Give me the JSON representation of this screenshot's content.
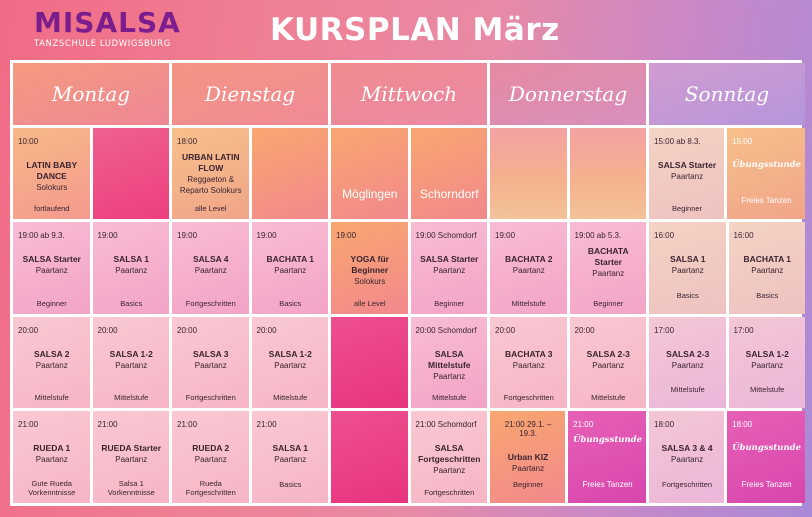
{
  "logo": {
    "name": "MISALSA",
    "subtitle": "TANZSCHULE LUDWIGSBURG"
  },
  "title": "KURSPLAN März",
  "days": [
    "Montag",
    "Dienstag",
    "Mittwoch",
    "Donnerstag",
    "Sonntag"
  ],
  "row1": {
    "mo": {
      "time": "10:00",
      "name": "LATIN BABY DANCE",
      "sub": "Solokurs",
      "level": "fortlaufend"
    },
    "di": {
      "time": "18:00",
      "name": "URBAN LATIN FLOW",
      "sub": "Reggaeton & Reparto Solokurs",
      "level": "alle Level"
    },
    "mi": {
      "loc1": "Möglingen",
      "loc2": "Schorndorf"
    },
    "so": {
      "a": {
        "time": "15:00 ab 8.3.",
        "name": "SALSA Starter",
        "sub": "Paartanz",
        "level": "Beginner"
      },
      "b": {
        "time": "15:00",
        "name": "Übungsstunde",
        "level": "Freies Tanzen"
      }
    }
  },
  "row2": {
    "mo": [
      {
        "time": "19:00 ab 9.3.",
        "name": "SALSA Starter",
        "sub": "Paartanz",
        "level": "Beginner"
      },
      {
        "time": "19:00",
        "name": "SALSA 1",
        "sub": "Paartanz",
        "level": "Basics"
      }
    ],
    "di": [
      {
        "time": "19:00",
        "name": "SALSA 4",
        "sub": "Paartanz",
        "level": "Fortgeschritten"
      },
      {
        "time": "19:00",
        "name": "BACHATA 1",
        "sub": "Paartanz",
        "level": "Basics"
      }
    ],
    "mi": [
      {
        "time": "19:00",
        "name": "YOGA für Beginner",
        "sub": "Solokurs",
        "level": "alle Level"
      },
      {
        "time": "19:00 Schomdorf",
        "name": "SALSA Starter",
        "sub": "Paartanz",
        "level": "Beginner"
      }
    ],
    "do": [
      {
        "time": "19:00",
        "name": "BACHATA 2",
        "sub": "Paartanz",
        "level": "Mittelstufe"
      },
      {
        "time": "19:00 ab 5.3.",
        "name": "BACHATA Starter",
        "sub": "Paartanz",
        "level": "Beginner"
      }
    ],
    "so": [
      {
        "time": "16:00",
        "name": "SALSA 1",
        "sub": "Paartanz",
        "level": "Basics"
      },
      {
        "time": "16:00",
        "name": "BACHATA 1",
        "sub": "Paartanz",
        "level": "Basics"
      }
    ]
  },
  "row3": {
    "mo": [
      {
        "time": "20:00",
        "name": "SALSA 2",
        "sub": "Paartanz",
        "level": "Mittelstufe"
      },
      {
        "time": "20:00",
        "name": "SALSA 1-2",
        "sub": "Paartanz",
        "level": "Mittelstufe"
      }
    ],
    "di": [
      {
        "time": "20:00",
        "name": "SALSA 3",
        "sub": "Paartanz",
        "level": "Fortgeschritten"
      },
      {
        "time": "20:00",
        "name": "SALSA 1-2",
        "sub": "Paartanz",
        "level": "Mittelstufe"
      }
    ],
    "mi": {
      "time": "20:00 Schomdorf",
      "name": "SALSA Mittelstufe",
      "sub": "Paartanz",
      "level": "Mittelstufe"
    },
    "do": [
      {
        "time": "20:00",
        "name": "BACHATA 3",
        "sub": "Paartanz",
        "level": "Fortgeschritten"
      },
      {
        "time": "20:00",
        "name": "SALSA 2-3",
        "sub": "Paartanz",
        "level": "Mittelstufe"
      }
    ],
    "so": [
      {
        "time": "17:00",
        "name": "SALSA 2-3",
        "sub": "Paartanz",
        "level": "Mittelstufe"
      },
      {
        "time": "17:00",
        "name": "SALSA 1-2",
        "sub": "Paartanz",
        "level": "Mittelstufe"
      }
    ]
  },
  "row4": {
    "mo": [
      {
        "time": "21:00",
        "name": "RUEDA 1",
        "sub": "Paartanz",
        "level": "Gute Rueda Vorkenntnisse"
      },
      {
        "time": "21:00",
        "name": "RUEDA Starter",
        "sub": "Paartanz",
        "level": "Salsa 1 Vorkenntnisse"
      }
    ],
    "di": [
      {
        "time": "21:00",
        "name": "RUEDA 2",
        "sub": "Paartanz",
        "level": "Rueda Fortgeschritten"
      },
      {
        "time": "21:00",
        "name": "SALSA 1",
        "sub": "Paartanz",
        "level": "Basics"
      }
    ],
    "mi": {
      "time": "21:00 Schomdorf",
      "name": "SALSA Fortgeschritten",
      "sub": "Paartanz",
      "level": "Fortgeschritten"
    },
    "do": [
      {
        "time": "21:00 29.1. – 19.3.",
        "name": "Urban KIZ",
        "sub": "Paartanz",
        "level": "Beginner"
      },
      {
        "time": "21:00",
        "name": "Übungsstunde",
        "level": "Freies Tanzen"
      }
    ],
    "so": [
      {
        "time": "18:00",
        "name": "SALSA 3 & 4",
        "sub": "Paartanz",
        "level": "Fortgeschritten"
      },
      {
        "time": "18:00",
        "name": "Übungsstunde",
        "level": "Freies Tanzen"
      }
    ]
  }
}
